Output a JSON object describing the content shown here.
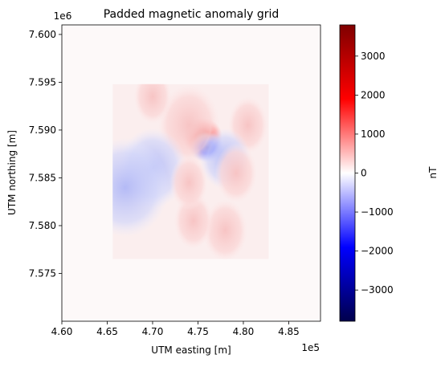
{
  "chart_data": {
    "type": "heatmap",
    "title": "Padded magnetic anomaly grid",
    "xlabel": "UTM easting [m]",
    "ylabel": "UTM northing [m]",
    "x_offset_label": "1e5",
    "y_offset_label": "1e6",
    "xlim": [
      4.6,
      4.885
    ],
    "ylim": [
      7.57,
      7.601
    ],
    "xticks": [
      4.6,
      4.65,
      4.7,
      4.75,
      4.8,
      4.85
    ],
    "xtick_labels": [
      "4.60",
      "4.65",
      "4.70",
      "4.75",
      "4.80",
      "4.85"
    ],
    "yticks": [
      7.575,
      7.58,
      7.585,
      7.59,
      7.595,
      7.6
    ],
    "ytick_labels": [
      "7.575",
      "7.580",
      "7.585",
      "7.590",
      "7.595",
      "7.600"
    ],
    "data_extent": {
      "x": [
        4.656,
        4.828
      ],
      "y": [
        7.5765,
        7.5948
      ]
    },
    "colorbar": {
      "label": "nT",
      "colormap": "seismic",
      "range": [
        -3800,
        3800
      ],
      "ticks": [
        3000,
        2000,
        1000,
        0,
        -1000,
        -2000,
        -3000
      ],
      "tick_labels": [
        "3000",
        "2000",
        "1000",
        "0",
        "−1000",
        "−2000",
        "−3000"
      ]
    },
    "anomalies": [
      {
        "x": 4.755,
        "y": 7.5893,
        "value": 3400
      },
      {
        "x": 4.76,
        "y": 7.5882,
        "value": -1800
      },
      {
        "x": 4.74,
        "y": 7.5905,
        "value": 900
      },
      {
        "x": 4.7,
        "y": 7.5935,
        "value": 350
      },
      {
        "x": 4.805,
        "y": 7.5905,
        "value": 400
      },
      {
        "x": 4.7,
        "y": 7.586,
        "value": -600
      },
      {
        "x": 4.67,
        "y": 7.584,
        "value": -900
      },
      {
        "x": 4.78,
        "y": 7.587,
        "value": -300
      },
      {
        "x": 4.78,
        "y": 7.5795,
        "value": 500
      },
      {
        "x": 4.745,
        "y": 7.5805,
        "value": 380
      },
      {
        "x": 4.792,
        "y": 7.5855,
        "value": 450
      },
      {
        "x": 4.74,
        "y": 7.5845,
        "value": 350
      }
    ],
    "colors": {
      "max": "#7f0000",
      "mid": "#ffffff",
      "min": "#00004c"
    }
  }
}
